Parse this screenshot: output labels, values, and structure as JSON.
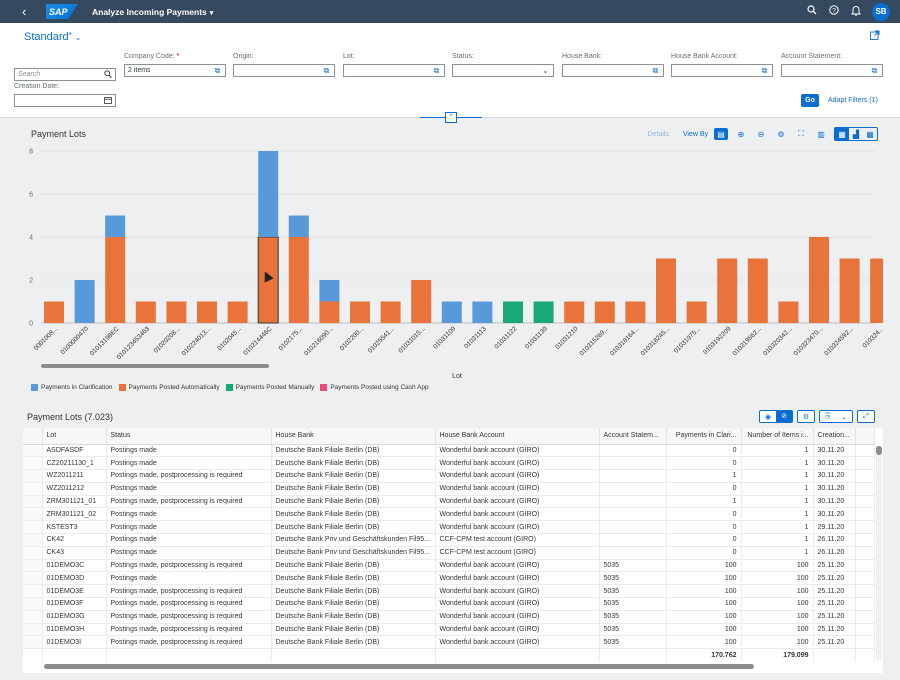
{
  "shell": {
    "back_glyph": "‹",
    "logo": "SAP",
    "title": "Analyze Incoming Payments",
    "title_caret": "▾",
    "avatar": "SB",
    "icons": [
      "search-icon",
      "help-icon",
      "bell-icon"
    ]
  },
  "filterbar": {
    "variant": "Standard",
    "variant_modified": "*",
    "variant_chevron": "⌄",
    "go_label": "Go",
    "adapt_label": "Adapt Filters (1)",
    "fields": [
      {
        "label": "",
        "value": "",
        "placeholder": "Search",
        "icon": "search-icon",
        "required": false
      },
      {
        "label": "Company Code:",
        "value": "2 items",
        "placeholder": "",
        "icon": "value-help-icon",
        "required": true
      },
      {
        "label": "Origin:",
        "value": "",
        "placeholder": "",
        "icon": "value-help-icon",
        "required": false
      },
      {
        "label": "Lot:",
        "value": "",
        "placeholder": "",
        "icon": "value-help-icon",
        "required": false
      },
      {
        "label": "Status:",
        "value": "",
        "placeholder": "",
        "icon": "dropdown-icon",
        "required": false
      },
      {
        "label": "House Bank:",
        "value": "",
        "placeholder": "",
        "icon": "value-help-icon",
        "required": false
      },
      {
        "label": "House Bank Account:",
        "value": "",
        "placeholder": "",
        "icon": "value-help-icon",
        "required": false
      },
      {
        "label": "Account Statement:",
        "value": "",
        "placeholder": "",
        "icon": "value-help-icon",
        "required": false
      },
      {
        "label": "Creation Date:",
        "value": "",
        "placeholder": "",
        "icon": "calendar-icon",
        "required": false
      }
    ]
  },
  "chart": {
    "title": "Payment Lots",
    "details_label": "Details",
    "viewby_label": "View By",
    "xlabel": "Lot"
  },
  "chart_data": {
    "type": "bar",
    "stacked": true,
    "xlabel": "Lot",
    "ylabel": "",
    "ylim": [
      0,
      8
    ],
    "yticks": [
      0,
      2,
      4,
      6,
      8
    ],
    "grid": true,
    "legend_position": "bottom-left",
    "categories": [
      "0001008...",
      "0100000470",
      "01013198EC",
      "010123453463",
      "01020208...",
      "010224013...",
      "0102045...",
      "010214446C",
      "0102175...",
      "010216090...",
      "0102200...",
      "01025541...",
      "01031015...",
      "01031109",
      "01031113",
      "01031122",
      "01031139",
      "01031210",
      "010315269...",
      "010318164...",
      "010318245...",
      "01031975...",
      "0103192209",
      "010319562...",
      "010320342...",
      "010323470...",
      "010324592...",
      "010324..."
    ],
    "series": [
      {
        "name": "Payments in Clarification",
        "color": "#5899da",
        "values": [
          0,
          2,
          1,
          0,
          0,
          0,
          0,
          4,
          1,
          1,
          0,
          0,
          0,
          1,
          1,
          0,
          0,
          0,
          0,
          0,
          0,
          0,
          0,
          0,
          0,
          0,
          0,
          0
        ]
      },
      {
        "name": "Payments Posted Automatically",
        "color": "#e8743b",
        "values": [
          1,
          0,
          4,
          1,
          1,
          1,
          1,
          4,
          4,
          1,
          1,
          1,
          2,
          0,
          0,
          0,
          0,
          1,
          1,
          1,
          3,
          1,
          3,
          3,
          1,
          4,
          3,
          3
        ]
      },
      {
        "name": "Payments Posted Manually",
        "color": "#19a979",
        "values": [
          0,
          0,
          0,
          0,
          0,
          0,
          0,
          0,
          0,
          0,
          0,
          0,
          0,
          0,
          0,
          1,
          1,
          0,
          0,
          0,
          0,
          0,
          0,
          0,
          0,
          0,
          0,
          0
        ]
      },
      {
        "name": "Payments Posted using Cash App",
        "color": "#ed4a7b",
        "values": [
          0,
          0,
          0,
          0,
          0,
          0,
          0,
          0,
          0,
          0,
          0,
          0,
          0,
          0,
          0,
          0,
          0,
          0,
          0,
          0,
          0,
          0,
          0,
          0,
          0,
          0,
          0,
          0
        ]
      }
    ]
  },
  "table": {
    "title": "Payment Lots (7.023)",
    "columns": [
      "Lot",
      "Status",
      "House Bank",
      "House Bank Account",
      "Account Statem...",
      "Payments in Clari...",
      "Number of Items i...",
      "Creation..."
    ],
    "rows": [
      [
        "ASDFASDF",
        "Postings made",
        "Deutsche Bank Filiale Berlin (DB)",
        "Wonderful bank account (GIRO)",
        "",
        "0",
        "1",
        "30.11.20"
      ],
      [
        "CZ20211130_1",
        "Postings made",
        "Deutsche Bank Filiale Berlin (DB)",
        "Wonderful bank account (GIRO)",
        "",
        "0",
        "1",
        "30.11.20"
      ],
      [
        "WZ2011211",
        "Postings made, postprocessing is required",
        "Deutsche Bank Filiale Berlin (DB)",
        "Wonderful bank account (GIRO)",
        "",
        "1",
        "1",
        "30.11.20"
      ],
      [
        "WZ2011212",
        "Postings made",
        "Deutsche Bank Filiale Berlin (DB)",
        "Wonderful bank account (GIRO)",
        "",
        "0",
        "1",
        "30.11.20"
      ],
      [
        "ZRM301121_01",
        "Postings made, postprocessing is required",
        "Deutsche Bank Filiale Berlin (DB)",
        "Wonderful bank account (GIRO)",
        "",
        "1",
        "1",
        "30.11.20"
      ],
      [
        "ZRM301121_02",
        "Postings made",
        "Deutsche Bank Filiale Berlin (DB)",
        "Wonderful bank account (GIRO)",
        "",
        "0",
        "1",
        "30.11.20"
      ],
      [
        "KSTEST3",
        "Postings made",
        "Deutsche Bank Filiale Berlin (DB)",
        "Wonderful bank account (GIRO)",
        "",
        "0",
        "1",
        "29.11.20"
      ],
      [
        "CK42",
        "Postings made",
        "Deutsche Bank Priv und Geschäftskunden Fil95...",
        "CCF-CPM test account (GIRO)",
        "",
        "0",
        "1",
        "26.11.20"
      ],
      [
        "CK43",
        "Postings made",
        "Deutsche Bank Priv und Geschäftskunden Fil95...",
        "CCF-CPM test account (GIRO)",
        "",
        "0",
        "1",
        "26.11.20"
      ],
      [
        "01DEMO3C",
        "Postings made, postprocessing is required",
        "Deutsche Bank Filiale Berlin (DB)",
        "Wonderful bank account (GIRO)",
        "5035",
        "100",
        "100",
        "25.11.20"
      ],
      [
        "01DEMO3D",
        "Postings made",
        "Deutsche Bank Filiale Berlin (DB)",
        "Wonderful bank account (GIRO)",
        "5035",
        "100",
        "100",
        "25.11.20"
      ],
      [
        "01DEMO3E",
        "Postings made, postprocessing is required",
        "Deutsche Bank Filiale Berlin (DB)",
        "Wonderful bank account (GIRO)",
        "5035",
        "100",
        "100",
        "25.11.20"
      ],
      [
        "01DEMO3F",
        "Postings made, postprocessing is required",
        "Deutsche Bank Filiale Berlin (DB)",
        "Wonderful bank account (GIRO)",
        "5035",
        "100",
        "100",
        "25.11.20"
      ],
      [
        "01DEMO3G",
        "Postings made, postprocessing is required",
        "Deutsche Bank Filiale Berlin (DB)",
        "Wonderful bank account (GIRO)",
        "5035",
        "100",
        "100",
        "25.11.20"
      ],
      [
        "01DEMO3H",
        "Postings made, postprocessing is required",
        "Deutsche Bank Filiale Berlin (DB)",
        "Wonderful bank account (GIRO)",
        "5035",
        "100",
        "100",
        "25.11.20"
      ],
      [
        "01DEMO3I",
        "Postings made, postprocessing is required",
        "Deutsche Bank Filiale Berlin (DB)",
        "Wonderful bank account (GIRO)",
        "5035",
        "100",
        "100",
        "25.11.20"
      ]
    ],
    "totals": {
      "payments_in_clarification": "170.762",
      "number_of_items": "179.099"
    }
  },
  "colors": {
    "shell": "#354a5f",
    "accent": "#0a6ed1",
    "clarification": "#5899da",
    "automatic": "#e8743b",
    "manual": "#19a979",
    "cashapp": "#ed4a7b"
  }
}
